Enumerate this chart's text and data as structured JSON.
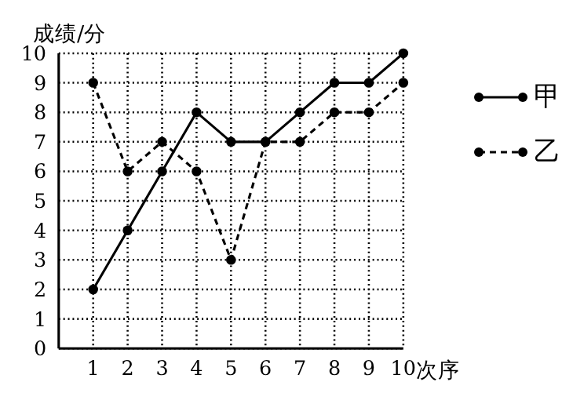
{
  "chart_data": {
    "type": "line",
    "xlabel": "次序",
    "ylabel": "成绩/分",
    "x": [
      1,
      2,
      3,
      4,
      5,
      6,
      7,
      8,
      9,
      10
    ],
    "series": [
      {
        "name": "甲",
        "color": "#000000",
        "line_style": "solid",
        "values": [
          2,
          4,
          6,
          8,
          7,
          7,
          8,
          9,
          9,
          10
        ]
      },
      {
        "name": "乙",
        "color": "#000000",
        "line_style": "dashed",
        "values": [
          9,
          6,
          7,
          6,
          3,
          7,
          7,
          8,
          8,
          9
        ]
      }
    ],
    "xlim": [
      0,
      10
    ],
    "xticks": [
      1,
      2,
      3,
      4,
      5,
      6,
      7,
      8,
      9,
      10
    ],
    "ylim": [
      0,
      10
    ],
    "yticks": [
      0,
      1,
      2,
      3,
      4,
      5,
      6,
      7,
      8,
      9,
      10
    ],
    "grid": true,
    "legend": "right",
    "marker": "circle"
  }
}
